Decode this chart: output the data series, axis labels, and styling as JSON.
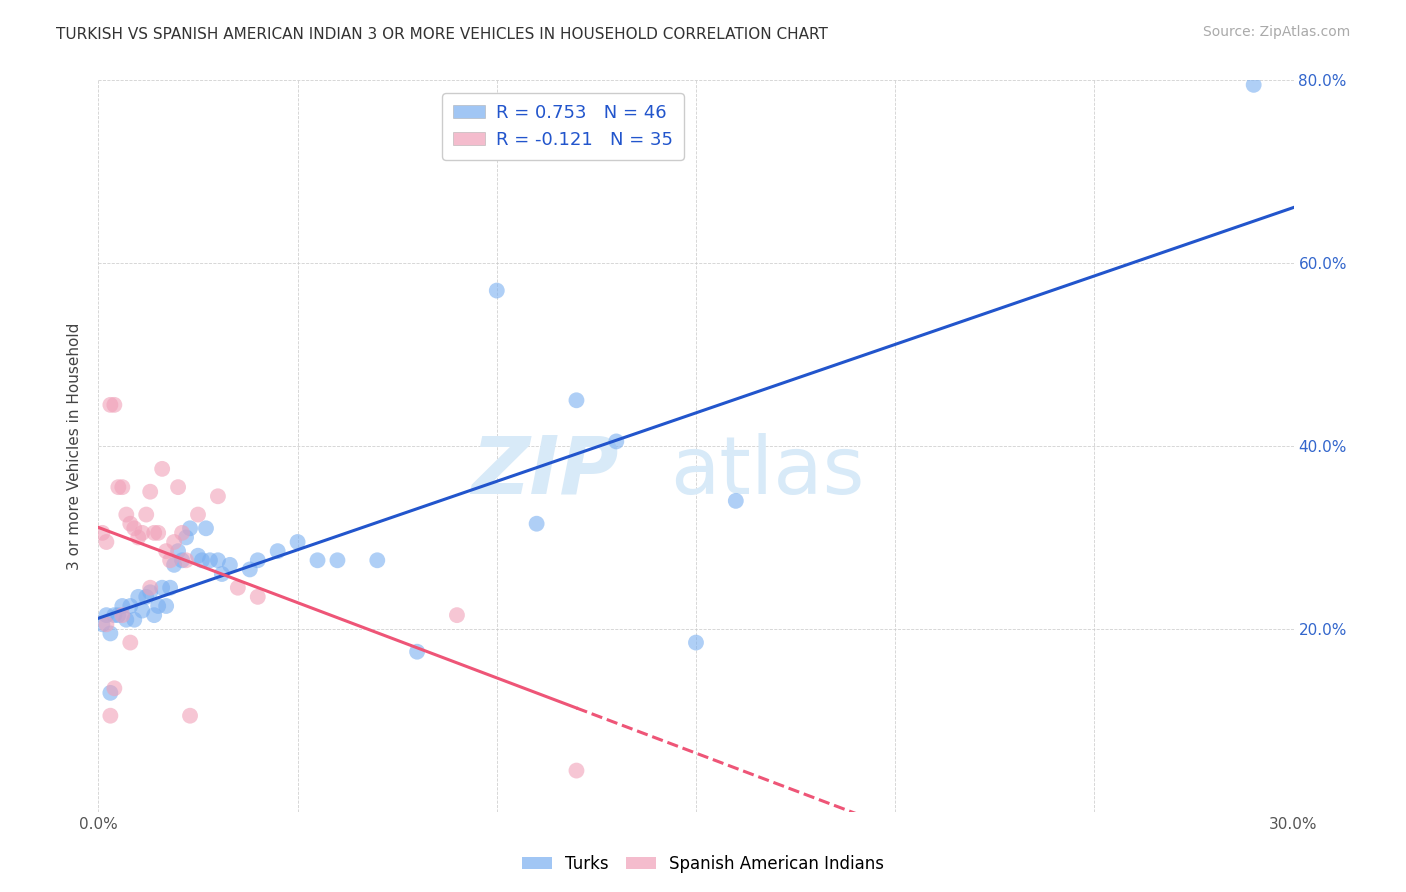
{
  "title": "TURKISH VS SPANISH AMERICAN INDIAN 3 OR MORE VEHICLES IN HOUSEHOLD CORRELATION CHART",
  "source": "Source: ZipAtlas.com",
  "ylabel": "3 or more Vehicles in Household",
  "xmin": 0.0,
  "xmax": 0.3,
  "ymin": 0.0,
  "ymax": 0.8,
  "x_ticks": [
    0.0,
    0.05,
    0.1,
    0.15,
    0.2,
    0.25,
    0.3
  ],
  "y_ticks": [
    0.0,
    0.2,
    0.4,
    0.6,
    0.8
  ],
  "turk_color": "#7aaff0",
  "spanish_color": "#f0a0b8",
  "turk_line_color": "#2255cc",
  "spanish_line_color": "#ee5577",
  "background_color": "#ffffff",
  "grid_color": "#cccccc",
  "watermark_zip": "ZIP",
  "watermark_atlas": "atlas",
  "watermark_color": "#d8eaf8",
  "r_turk": 0.753,
  "n_turk": 46,
  "r_spanish": -0.121,
  "n_spanish": 35,
  "scatter_turks": [
    [
      0.001,
      0.205
    ],
    [
      0.002,
      0.215
    ],
    [
      0.003,
      0.195
    ],
    [
      0.004,
      0.215
    ],
    [
      0.005,
      0.215
    ],
    [
      0.006,
      0.225
    ],
    [
      0.007,
      0.21
    ],
    [
      0.008,
      0.225
    ],
    [
      0.009,
      0.21
    ],
    [
      0.01,
      0.235
    ],
    [
      0.011,
      0.22
    ],
    [
      0.012,
      0.235
    ],
    [
      0.013,
      0.24
    ],
    [
      0.014,
      0.215
    ],
    [
      0.015,
      0.225
    ],
    [
      0.016,
      0.245
    ],
    [
      0.017,
      0.225
    ],
    [
      0.018,
      0.245
    ],
    [
      0.019,
      0.27
    ],
    [
      0.02,
      0.285
    ],
    [
      0.021,
      0.275
    ],
    [
      0.022,
      0.3
    ],
    [
      0.023,
      0.31
    ],
    [
      0.025,
      0.28
    ],
    [
      0.026,
      0.275
    ],
    [
      0.027,
      0.31
    ],
    [
      0.028,
      0.275
    ],
    [
      0.03,
      0.275
    ],
    [
      0.031,
      0.26
    ],
    [
      0.033,
      0.27
    ],
    [
      0.038,
      0.265
    ],
    [
      0.04,
      0.275
    ],
    [
      0.045,
      0.285
    ],
    [
      0.05,
      0.295
    ],
    [
      0.055,
      0.275
    ],
    [
      0.06,
      0.275
    ],
    [
      0.07,
      0.275
    ],
    [
      0.08,
      0.175
    ],
    [
      0.1,
      0.57
    ],
    [
      0.11,
      0.315
    ],
    [
      0.12,
      0.45
    ],
    [
      0.13,
      0.405
    ],
    [
      0.15,
      0.185
    ],
    [
      0.16,
      0.34
    ],
    [
      0.29,
      0.795
    ],
    [
      0.003,
      0.13
    ]
  ],
  "scatter_spanish": [
    [
      0.001,
      0.305
    ],
    [
      0.002,
      0.295
    ],
    [
      0.003,
      0.445
    ],
    [
      0.004,
      0.445
    ],
    [
      0.005,
      0.355
    ],
    [
      0.006,
      0.355
    ],
    [
      0.007,
      0.325
    ],
    [
      0.008,
      0.315
    ],
    [
      0.009,
      0.31
    ],
    [
      0.01,
      0.3
    ],
    [
      0.011,
      0.305
    ],
    [
      0.012,
      0.325
    ],
    [
      0.013,
      0.35
    ],
    [
      0.014,
      0.305
    ],
    [
      0.015,
      0.305
    ],
    [
      0.016,
      0.375
    ],
    [
      0.017,
      0.285
    ],
    [
      0.018,
      0.275
    ],
    [
      0.019,
      0.295
    ],
    [
      0.02,
      0.355
    ],
    [
      0.021,
      0.305
    ],
    [
      0.022,
      0.275
    ],
    [
      0.023,
      0.105
    ],
    [
      0.025,
      0.325
    ],
    [
      0.03,
      0.345
    ],
    [
      0.035,
      0.245
    ],
    [
      0.04,
      0.235
    ],
    [
      0.003,
      0.105
    ],
    [
      0.004,
      0.135
    ],
    [
      0.006,
      0.215
    ],
    [
      0.12,
      0.045
    ],
    [
      0.002,
      0.205
    ],
    [
      0.008,
      0.185
    ],
    [
      0.013,
      0.245
    ],
    [
      0.09,
      0.215
    ]
  ]
}
